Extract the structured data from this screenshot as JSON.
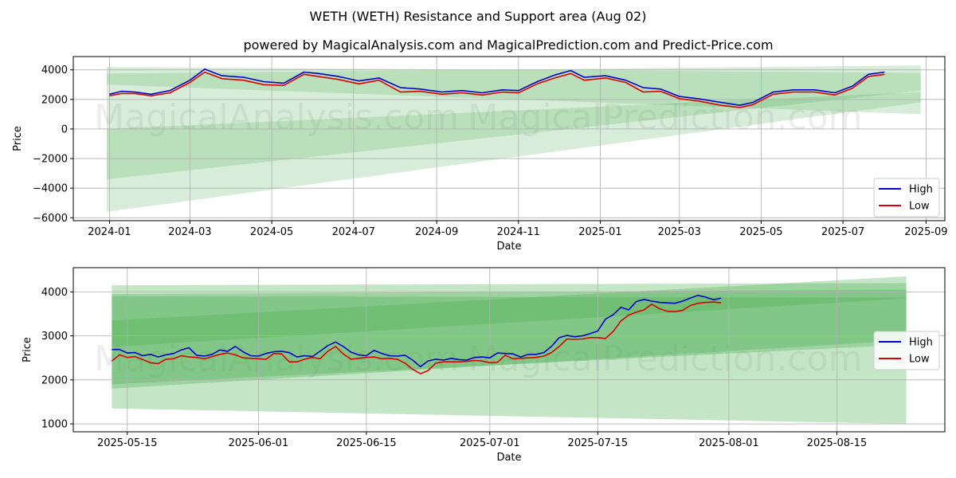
{
  "title": "WETH (WETH) Resistance and Support area (Aug 02)",
  "subtitle": "powered by MagicalAnalysis.com and MagicalPrediction.com and Predict-Price.com",
  "watermarks": [
    "MagicalAnalysis.com",
    "MagicalPrediction.com"
  ],
  "colors": {
    "high": "#0000cc",
    "low": "#dd0000",
    "band": "#4caf50"
  },
  "chart_data": [
    {
      "type": "line",
      "xlabel": "Date",
      "ylabel": "Price",
      "xlim": [
        "2023-12-05",
        "2025-09-15"
      ],
      "ylim": [
        -6200,
        4900
      ],
      "xticks": [
        "2024-01",
        "2024-03",
        "2024-05",
        "2024-07",
        "2024-09",
        "2024-11",
        "2025-01",
        "2025-03",
        "2025-05",
        "2025-07",
        "2025-09"
      ],
      "xtick_dates": [
        "2024-01-01",
        "2024-03-01",
        "2024-05-01",
        "2024-07-01",
        "2024-09-01",
        "2024-11-01",
        "2025-01-01",
        "2025-03-01",
        "2025-05-01",
        "2025-07-01",
        "2025-09-01"
      ],
      "yticks": [
        4000,
        2000,
        0,
        -2000,
        -4000,
        -6000
      ],
      "ytick_labels": [
        "4000",
        "2000",
        "0",
        "−2000",
        "−4000",
        "−6000"
      ],
      "grid": true,
      "legend": "bottom-right",
      "bands": [
        {
          "x": [
            "2023-12-30",
            "2025-08-28"
          ],
          "upper": [
            3750,
            4300
          ],
          "lower": [
            3000,
            1000
          ]
        },
        {
          "x": [
            "2023-12-30",
            "2025-08-28"
          ],
          "upper": [
            4200,
            3800
          ],
          "lower": [
            -3400,
            2600
          ]
        },
        {
          "x": [
            "2023-12-30",
            "2025-08-28"
          ],
          "upper": [
            0,
            2500
          ],
          "lower": [
            -5600,
            1800
          ]
        }
      ],
      "series": [
        {
          "name": "High",
          "x": [
            "2024-01-01",
            "2024-01-10",
            "2024-01-20",
            "2024-02-01",
            "2024-02-15",
            "2024-03-01",
            "2024-03-12",
            "2024-03-25",
            "2024-04-10",
            "2024-04-25",
            "2024-05-10",
            "2024-05-25",
            "2024-06-05",
            "2024-06-20",
            "2024-07-05",
            "2024-07-20",
            "2024-08-05",
            "2024-08-20",
            "2024-09-05",
            "2024-09-20",
            "2024-10-05",
            "2024-10-20",
            "2024-11-01",
            "2024-11-15",
            "2024-11-28",
            "2024-12-10",
            "2024-12-20",
            "2025-01-05",
            "2025-01-20",
            "2025-02-02",
            "2025-02-15",
            "2025-03-01",
            "2025-03-15",
            "2025-04-01",
            "2025-04-15",
            "2025-04-25",
            "2025-05-10",
            "2025-05-25",
            "2025-06-10",
            "2025-06-25",
            "2025-07-08",
            "2025-07-20",
            "2025-08-01"
          ],
          "y": [
            2350,
            2550,
            2500,
            2350,
            2600,
            3300,
            4050,
            3600,
            3500,
            3200,
            3100,
            3850,
            3750,
            3550,
            3250,
            3450,
            2800,
            2700,
            2500,
            2600,
            2450,
            2650,
            2600,
            3200,
            3650,
            3950,
            3500,
            3600,
            3300,
            2800,
            2700,
            2200,
            2050,
            1800,
            1600,
            1800,
            2500,
            2650,
            2650,
            2450,
            2900,
            3700,
            3850
          ]
        },
        {
          "name": "Low",
          "x": [
            "2024-01-01",
            "2024-01-10",
            "2024-01-20",
            "2024-02-01",
            "2024-02-15",
            "2024-03-01",
            "2024-03-12",
            "2024-03-25",
            "2024-04-10",
            "2024-04-25",
            "2024-05-10",
            "2024-05-25",
            "2024-06-05",
            "2024-06-20",
            "2024-07-05",
            "2024-07-20",
            "2024-08-05",
            "2024-08-20",
            "2024-09-05",
            "2024-09-20",
            "2024-10-05",
            "2024-10-20",
            "2024-11-01",
            "2024-11-15",
            "2024-11-28",
            "2024-12-10",
            "2024-12-20",
            "2025-01-05",
            "2025-01-20",
            "2025-02-02",
            "2025-02-15",
            "2025-03-01",
            "2025-03-15",
            "2025-04-01",
            "2025-04-15",
            "2025-04-25",
            "2025-05-10",
            "2025-05-25",
            "2025-06-10",
            "2025-06-25",
            "2025-07-08",
            "2025-07-20",
            "2025-08-01"
          ],
          "y": [
            2250,
            2400,
            2400,
            2250,
            2450,
            3150,
            3850,
            3400,
            3300,
            3000,
            2950,
            3700,
            3550,
            3350,
            3050,
            3300,
            2500,
            2550,
            2350,
            2450,
            2300,
            2500,
            2450,
            3050,
            3450,
            3750,
            3300,
            3450,
            3150,
            2500,
            2550,
            2050,
            1900,
            1600,
            1450,
            1650,
            2350,
            2500,
            2500,
            2300,
            2750,
            3550,
            3700
          ]
        }
      ]
    },
    {
      "type": "line",
      "xlabel": "Date",
      "ylabel": "Price",
      "xlim": [
        "2025-05-08",
        "2025-08-29"
      ],
      "ylim": [
        820,
        4550
      ],
      "xticks": [
        "2025-05-15",
        "2025-06-01",
        "2025-06-15",
        "2025-07-01",
        "2025-07-15",
        "2025-08-01",
        "2025-08-15"
      ],
      "xtick_dates": [
        "2025-05-15",
        "2025-06-01",
        "2025-06-15",
        "2025-07-01",
        "2025-07-15",
        "2025-08-01",
        "2025-08-15"
      ],
      "yticks": [
        1000,
        2000,
        3000,
        4000
      ],
      "ytick_labels": [
        "1000",
        "2000",
        "3000",
        "4000"
      ],
      "grid": true,
      "legend": "center-right",
      "bands": [
        {
          "x": [
            "2025-05-13",
            "2025-08-24"
          ],
          "upper": [
            4150,
            4200
          ],
          "lower": [
            1350,
            1000
          ]
        },
        {
          "x": [
            "2025-05-13",
            "2025-08-24"
          ],
          "upper": [
            3950,
            4050
          ],
          "lower": [
            1800,
            2900
          ]
        },
        {
          "x": [
            "2025-05-13",
            "2025-08-24"
          ],
          "upper": [
            3350,
            4350
          ],
          "lower": [
            2750,
            3850
          ]
        },
        {
          "x": [
            "2025-05-13",
            "2025-08-24"
          ],
          "upper": [
            3900,
            3870
          ],
          "lower": [
            1900,
            2800
          ]
        }
      ],
      "series": [
        {
          "name": "High",
          "x": [
            "2025-05-13",
            "2025-05-14",
            "2025-05-15",
            "2025-05-16",
            "2025-05-17",
            "2025-05-18",
            "2025-05-19",
            "2025-05-20",
            "2025-05-21",
            "2025-05-22",
            "2025-05-23",
            "2025-05-24",
            "2025-05-25",
            "2025-05-26",
            "2025-05-27",
            "2025-05-28",
            "2025-05-29",
            "2025-05-30",
            "2025-05-31",
            "2025-06-01",
            "2025-06-02",
            "2025-06-03",
            "2025-06-04",
            "2025-06-05",
            "2025-06-06",
            "2025-06-07",
            "2025-06-08",
            "2025-06-09",
            "2025-06-10",
            "2025-06-11",
            "2025-06-12",
            "2025-06-13",
            "2025-06-14",
            "2025-06-15",
            "2025-06-16",
            "2025-06-17",
            "2025-06-18",
            "2025-06-19",
            "2025-06-20",
            "2025-06-21",
            "2025-06-22",
            "2025-06-23",
            "2025-06-24",
            "2025-06-25",
            "2025-06-26",
            "2025-06-27",
            "2025-06-28",
            "2025-06-29",
            "2025-06-30",
            "2025-07-01",
            "2025-07-02",
            "2025-07-03",
            "2025-07-04",
            "2025-07-05",
            "2025-07-06",
            "2025-07-07",
            "2025-07-08",
            "2025-07-09",
            "2025-07-10",
            "2025-07-11",
            "2025-07-12",
            "2025-07-13",
            "2025-07-14",
            "2025-07-15",
            "2025-07-16",
            "2025-07-17",
            "2025-07-18",
            "2025-07-19",
            "2025-07-20",
            "2025-07-21",
            "2025-07-22",
            "2025-07-23",
            "2025-07-24",
            "2025-07-25",
            "2025-07-26",
            "2025-07-27",
            "2025-07-28",
            "2025-07-29",
            "2025-07-30",
            "2025-07-31"
          ],
          "y": [
            2690,
            2690,
            2610,
            2620,
            2550,
            2580,
            2520,
            2570,
            2600,
            2680,
            2730,
            2560,
            2540,
            2580,
            2680,
            2650,
            2760,
            2640,
            2550,
            2540,
            2600,
            2640,
            2650,
            2620,
            2520,
            2550,
            2530,
            2650,
            2780,
            2860,
            2760,
            2630,
            2570,
            2550,
            2670,
            2600,
            2550,
            2540,
            2560,
            2450,
            2300,
            2430,
            2470,
            2450,
            2490,
            2460,
            2450,
            2510,
            2520,
            2500,
            2610,
            2600,
            2590,
            2520,
            2580,
            2580,
            2620,
            2760,
            2960,
            3010,
            2980,
            3000,
            3050,
            3110,
            3380,
            3480,
            3650,
            3590,
            3780,
            3830,
            3790,
            3760,
            3750,
            3740,
            3790,
            3860,
            3920,
            3880,
            3820,
            3860
          ]
        },
        {
          "name": "Low",
          "x": [
            "2025-05-13",
            "2025-05-14",
            "2025-05-15",
            "2025-05-16",
            "2025-05-17",
            "2025-05-18",
            "2025-05-19",
            "2025-05-20",
            "2025-05-21",
            "2025-05-22",
            "2025-05-23",
            "2025-05-24",
            "2025-05-25",
            "2025-05-26",
            "2025-05-27",
            "2025-05-28",
            "2025-05-29",
            "2025-05-30",
            "2025-05-31",
            "2025-06-01",
            "2025-06-02",
            "2025-06-03",
            "2025-06-04",
            "2025-06-05",
            "2025-06-06",
            "2025-06-07",
            "2025-06-08",
            "2025-06-09",
            "2025-06-10",
            "2025-06-11",
            "2025-06-12",
            "2025-06-13",
            "2025-06-14",
            "2025-06-15",
            "2025-06-16",
            "2025-06-17",
            "2025-06-18",
            "2025-06-19",
            "2025-06-20",
            "2025-06-21",
            "2025-06-22",
            "2025-06-23",
            "2025-06-24",
            "2025-06-25",
            "2025-06-26",
            "2025-06-27",
            "2025-06-28",
            "2025-06-29",
            "2025-06-30",
            "2025-07-01",
            "2025-07-02",
            "2025-07-03",
            "2025-07-04",
            "2025-07-05",
            "2025-07-06",
            "2025-07-07",
            "2025-07-08",
            "2025-07-09",
            "2025-07-10",
            "2025-07-11",
            "2025-07-12",
            "2025-07-13",
            "2025-07-14",
            "2025-07-15",
            "2025-07-16",
            "2025-07-17",
            "2025-07-18",
            "2025-07-19",
            "2025-07-20",
            "2025-07-21",
            "2025-07-22",
            "2025-07-23",
            "2025-07-24",
            "2025-07-25",
            "2025-07-26",
            "2025-07-27",
            "2025-07-28",
            "2025-07-29",
            "2025-07-30",
            "2025-07-31"
          ],
          "y": [
            2430,
            2570,
            2510,
            2530,
            2460,
            2390,
            2370,
            2470,
            2480,
            2550,
            2520,
            2510,
            2480,
            2530,
            2580,
            2610,
            2570,
            2500,
            2490,
            2480,
            2470,
            2600,
            2590,
            2410,
            2410,
            2470,
            2510,
            2480,
            2650,
            2760,
            2590,
            2470,
            2490,
            2510,
            2520,
            2480,
            2490,
            2470,
            2380,
            2240,
            2140,
            2210,
            2380,
            2410,
            2410,
            2410,
            2420,
            2440,
            2430,
            2390,
            2400,
            2560,
            2480,
            2490,
            2500,
            2510,
            2540,
            2620,
            2760,
            2930,
            2920,
            2930,
            2960,
            2960,
            2940,
            3100,
            3340,
            3470,
            3540,
            3590,
            3720,
            3620,
            3560,
            3550,
            3580,
            3690,
            3740,
            3760,
            3770,
            3750
          ]
        }
      ]
    }
  ]
}
